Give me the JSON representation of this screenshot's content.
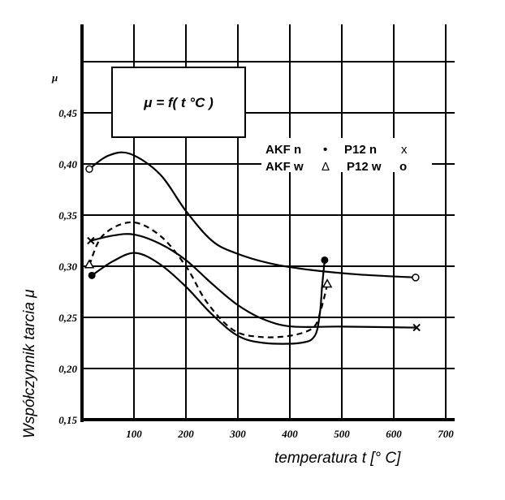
{
  "chart_data": {
    "type": "line",
    "formula_box": "μ = f( t °C )",
    "xlabel": "temperatura t [° C]",
    "ylabel": "Współczynnik tarcia μ",
    "y_unit_label": "μ",
    "xlim": [
      0,
      700
    ],
    "ylim": [
      0.15,
      0.5
    ],
    "x_ticks": [
      100,
      200,
      300,
      400,
      500,
      600,
      700
    ],
    "x_tick_labels": [
      "100",
      "200",
      "300",
      "400",
      "500",
      "600",
      "700"
    ],
    "y_ticks": [
      0.15,
      0.2,
      0.25,
      0.3,
      0.35,
      0.4,
      0.45
    ],
    "y_tick_labels": [
      "0,15",
      "0,20",
      "0,25",
      "0,30",
      "0,35",
      "0,40",
      "0,45"
    ],
    "grid": true,
    "legend": {
      "placement": "top-right",
      "rows": [
        [
          "AKF n",
          "•",
          "P12 n",
          "x"
        ],
        [
          "AKF w",
          "Δ",
          "P12 w",
          "o"
        ]
      ]
    },
    "series": [
      {
        "name": "P12 w",
        "marker": "o",
        "dash": false,
        "points": [
          [
            14,
            0.395
          ],
          [
            50,
            0.408
          ],
          [
            92,
            0.41
          ],
          [
            150,
            0.39
          ],
          [
            200,
            0.354
          ],
          [
            250,
            0.325
          ],
          [
            295,
            0.313
          ],
          [
            360,
            0.303
          ],
          [
            430,
            0.297
          ],
          [
            530,
            0.292
          ],
          [
            642,
            0.289
          ]
        ]
      },
      {
        "name": "P12 n",
        "marker": "x",
        "dash": false,
        "points": [
          [
            17,
            0.325
          ],
          [
            60,
            0.33
          ],
          [
            100,
            0.331
          ],
          [
            150,
            0.322
          ],
          [
            200,
            0.306
          ],
          [
            250,
            0.283
          ],
          [
            300,
            0.262
          ],
          [
            350,
            0.248
          ],
          [
            405,
            0.241
          ],
          [
            500,
            0.241
          ],
          [
            644,
            0.24
          ]
        ]
      },
      {
        "name": "AKF n",
        "marker": "•",
        "dash": false,
        "points": [
          [
            19,
            0.291
          ],
          [
            60,
            0.305
          ],
          [
            103,
            0.313
          ],
          [
            150,
            0.302
          ],
          [
            200,
            0.28
          ],
          [
            250,
            0.253
          ],
          [
            300,
            0.232
          ],
          [
            350,
            0.225
          ],
          [
            420,
            0.225
          ],
          [
            448,
            0.232
          ],
          [
            458,
            0.255
          ],
          [
            462,
            0.28
          ],
          [
            467,
            0.306
          ]
        ]
      },
      {
        "name": "AKF w",
        "marker": "Δ",
        "dash": true,
        "points": [
          [
            14,
            0.301
          ],
          [
            40,
            0.33
          ],
          [
            95,
            0.343
          ],
          [
            150,
            0.33
          ],
          [
            200,
            0.3
          ],
          [
            240,
            0.265
          ],
          [
            290,
            0.238
          ],
          [
            340,
            0.231
          ],
          [
            400,
            0.232
          ],
          [
            445,
            0.24
          ],
          [
            460,
            0.258
          ],
          [
            472,
            0.282
          ]
        ]
      }
    ]
  }
}
